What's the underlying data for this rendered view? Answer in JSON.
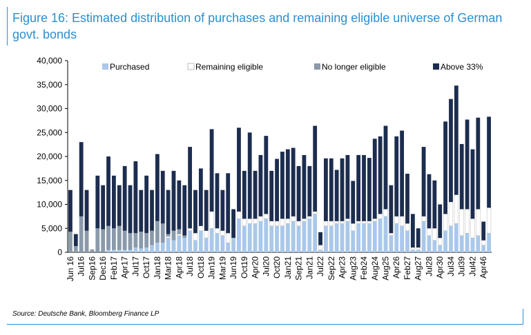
{
  "chart_data": {
    "type": "bar",
    "stacked": true,
    "title": "Figure 16: Estimated distribution of purchases and remaining eligible universe of German govt. bonds",
    "source": "Source: Deutsche Bank, Bloomberg Finance LP",
    "categories": [
      "Jun 16",
      null,
      "Jul16",
      null,
      "Sep16",
      null,
      "Dec16",
      null,
      "Feb17",
      null,
      "Apr17",
      null,
      "Jul17",
      null,
      "Oct17",
      null,
      "Jan18",
      null,
      "Mar18",
      null,
      "Apr18",
      null,
      "Jul18",
      null,
      "Oct18",
      null,
      "Jan19",
      null,
      "Mar19",
      null,
      "Jun19",
      null,
      "Oct19",
      null,
      "Apr20",
      null,
      "Jul20",
      null,
      "Oct20",
      null,
      "Jan21",
      null,
      "Sep21",
      null,
      "Jan21",
      null,
      "Jul22",
      null,
      "Sep22",
      null,
      "Apr23",
      null,
      "Aug23",
      null,
      "Feb24",
      null,
      "Aug24",
      null,
      "Aug25",
      null,
      "Apr26",
      null,
      "Feb27",
      null,
      "Aug27",
      null,
      "Jul28",
      null,
      "Apr30",
      null,
      "Jul34",
      null,
      "Jul39",
      null,
      "Jul42",
      null,
      "Apr46",
      null
    ],
    "series": [
      {
        "name": "Purchased",
        "color": "#a9c8ea",
        "values": [
          0,
          0,
          0,
          0,
          0,
          0,
          0,
          500,
          500,
          500,
          500,
          500,
          1000,
          800,
          1000,
          1500,
          2000,
          2000,
          3000,
          2500,
          3500,
          3000,
          4500,
          2500,
          4500,
          3000,
          5000,
          4000,
          3500,
          2000,
          3000,
          7000,
          5500,
          6000,
          6000,
          6500,
          7000,
          5500,
          5500,
          5500,
          6000,
          6500,
          5500,
          6500,
          7000,
          8000,
          500,
          5500,
          5500,
          6000,
          6000,
          6500,
          4500,
          6000,
          6000,
          6000,
          6500,
          7000,
          7500,
          3500,
          6000,
          5500,
          4500,
          500,
          500,
          6500,
          3500,
          2500,
          1500,
          4500,
          5500,
          6000,
          3500,
          4000,
          3000,
          3500,
          1500,
          4000
        ]
      },
      {
        "name": "Remaining eligible",
        "color": "#ffffff",
        "values": [
          0,
          0,
          0,
          0,
          0,
          0,
          0,
          0,
          0,
          0,
          0,
          0,
          0,
          0,
          0,
          0,
          0,
          0,
          300,
          0,
          300,
          0,
          500,
          1500,
          1000,
          1500,
          3500,
          1000,
          1000,
          2000,
          0,
          1500,
          1500,
          1000,
          1000,
          1000,
          1000,
          1000,
          1000,
          1500,
          1000,
          1000,
          1000,
          500,
          500,
          500,
          1000,
          1000,
          1000,
          500,
          500,
          500,
          1500,
          500,
          500,
          500,
          500,
          1000,
          1500,
          500,
          1500,
          2000,
          1500,
          500,
          500,
          1000,
          1500,
          2500,
          1500,
          3500,
          5000,
          6000,
          5500,
          5000,
          4000,
          5500,
          1000,
          5300
        ]
      },
      {
        "name": "No longer  eligible",
        "color": "#8a9aab",
        "values": [
          4300,
          1300,
          7500,
          4500,
          600,
          5000,
          4800,
          5000,
          4500,
          5000,
          4000,
          3500,
          3000,
          3500,
          3000,
          3000,
          4500,
          4000,
          500,
          2000,
          1000,
          500,
          0,
          0,
          0,
          0,
          0,
          0,
          0,
          0,
          0,
          0,
          0,
          0,
          0,
          0,
          0,
          0,
          0,
          0,
          0,
          0,
          0,
          0,
          0,
          0,
          0,
          0,
          0,
          0,
          0,
          0,
          0,
          0,
          0,
          0,
          0,
          0,
          0,
          0,
          0,
          0,
          0,
          0,
          0,
          0,
          0,
          0,
          0,
          0,
          0,
          0,
          0,
          0,
          0,
          0,
          0,
          0
        ]
      },
      {
        "name": "Above 33%",
        "color": "#1c2d4f",
        "values": [
          8700,
          2500,
          15500,
          8500,
          0,
          11000,
          9200,
          14500,
          11000,
          8500,
          13500,
          10000,
          15000,
          8700,
          12000,
          8500,
          14000,
          11000,
          9200,
          12500,
          10200,
          10500,
          17000,
          9000,
          12000,
          8500,
          17200,
          11500,
          8500,
          12500,
          6000,
          17500,
          10000,
          18000,
          10000,
          12800,
          16300,
          10500,
          13000,
          14000,
          14500,
          14300,
          11500,
          13300,
          10500,
          17900,
          2700,
          13100,
          13100,
          10700,
          13100,
          13300,
          8900,
          13800,
          13800,
          13200,
          16700,
          16200,
          17400,
          10000,
          16700,
          17900,
          10400,
          7000,
          4000,
          14500,
          11300,
          10000,
          7000,
          19300,
          21500,
          22800,
          13600,
          18700,
          14500,
          19100,
          3900,
          19000
        ]
      }
    ],
    "ylim": [
      0,
      40000
    ],
    "yticks": [
      {
        "value": 0,
        "label": "0"
      },
      {
        "value": 5000,
        "label": "5,000"
      },
      {
        "value": 10000,
        "label": "10,000"
      },
      {
        "value": 15000,
        "label": "15,000"
      },
      {
        "value": 20000,
        "label": "20,000"
      },
      {
        "value": 25000,
        "label": "25,000"
      },
      {
        "value": 30000,
        "label": "30,000"
      },
      {
        "value": 35000,
        "label": "35,000"
      },
      {
        "value": 40000,
        "label": "40,000"
      }
    ],
    "legend": "top"
  }
}
